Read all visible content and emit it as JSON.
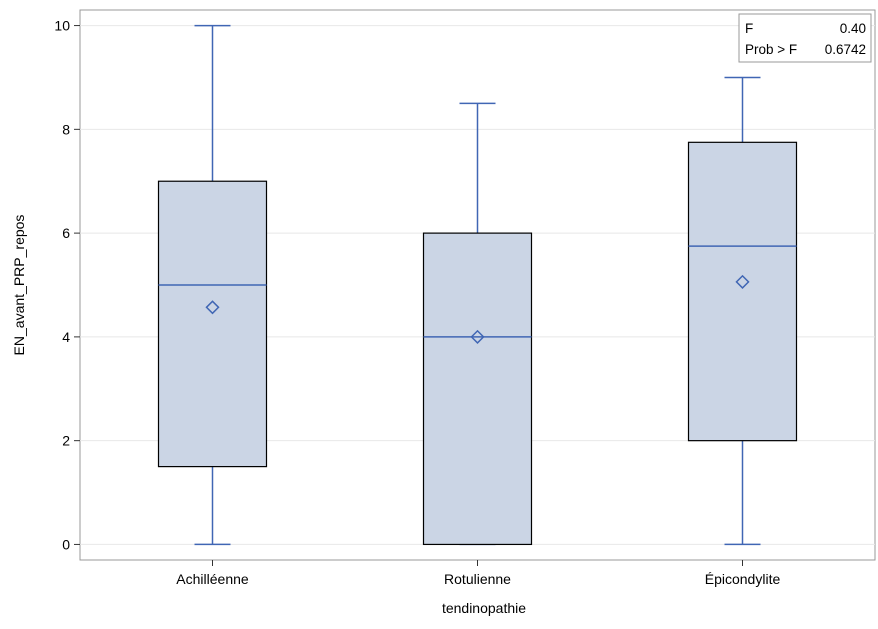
{
  "chart_data": {
    "type": "box",
    "xlabel": "tendinopathie",
    "ylabel": "EN_avant_PRP_repos",
    "ylim": [
      -0.3,
      10.3
    ],
    "yticks": [
      0,
      2,
      4,
      6,
      8,
      10
    ],
    "grid": true,
    "categories": [
      "Achilléenne",
      "Rotulienne",
      "Épicondylite"
    ],
    "boxes": [
      {
        "category": "Achilléenne",
        "min": 0,
        "q1": 1.5,
        "median": 5,
        "q3": 7,
        "max": 10,
        "mean": 4.57
      },
      {
        "category": "Rotulienne",
        "min": 0,
        "q1": 0,
        "median": 4,
        "q3": 6,
        "max": 8.5,
        "mean": 4.0
      },
      {
        "category": "Épicondylite",
        "min": 0,
        "q1": 2,
        "median": 5.75,
        "q3": 7.75,
        "max": 9,
        "mean": 5.06
      }
    ],
    "stats_inset": {
      "position": "top-right",
      "rows": [
        {
          "label": "F",
          "value": "0.40"
        },
        {
          "label": "Prob > F",
          "value": "0.6742"
        }
      ]
    },
    "colors": {
      "box_fill": "#cbd5e5",
      "box_stroke": "#000000",
      "whisker": "#4066b4",
      "median": "#4066b4",
      "mean_marker": "#4066b4",
      "grid": "#e8e8e8",
      "frame": "#999999"
    }
  }
}
